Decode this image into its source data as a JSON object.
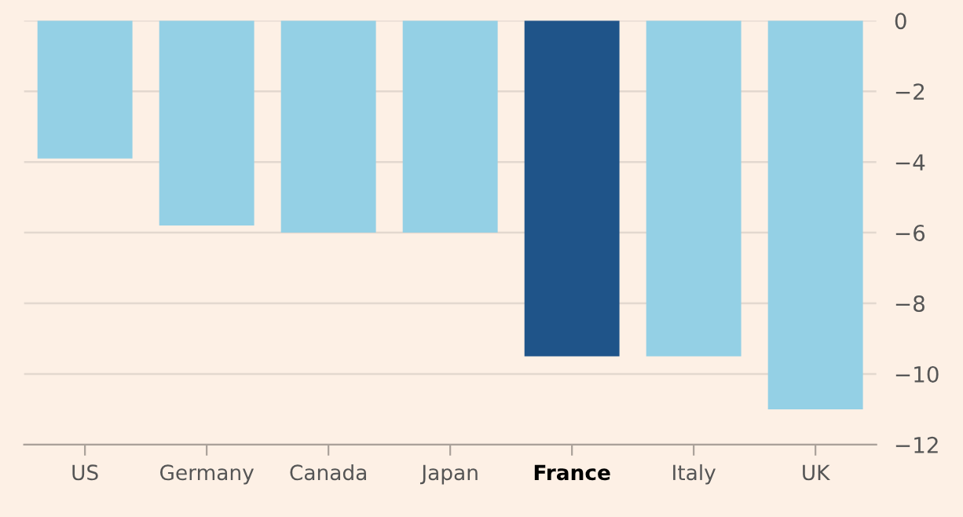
{
  "chart_data": {
    "type": "bar",
    "categories": [
      "US",
      "Germany",
      "Canada",
      "Japan",
      "France",
      "Italy",
      "UK"
    ],
    "values": [
      -3.9,
      -5.8,
      -6.0,
      -6.0,
      -9.5,
      -9.5,
      -11.0
    ],
    "colors": [
      "#94d0e5",
      "#94d0e5",
      "#94d0e5",
      "#94d0e5",
      "#1f5489",
      "#94d0e5",
      "#94d0e5"
    ],
    "ylim": [
      -12,
      0
    ],
    "yticks": [
      0,
      -2,
      -4,
      -6,
      -8,
      -10,
      -12
    ],
    "grid": "y",
    "legend": false
  }
}
